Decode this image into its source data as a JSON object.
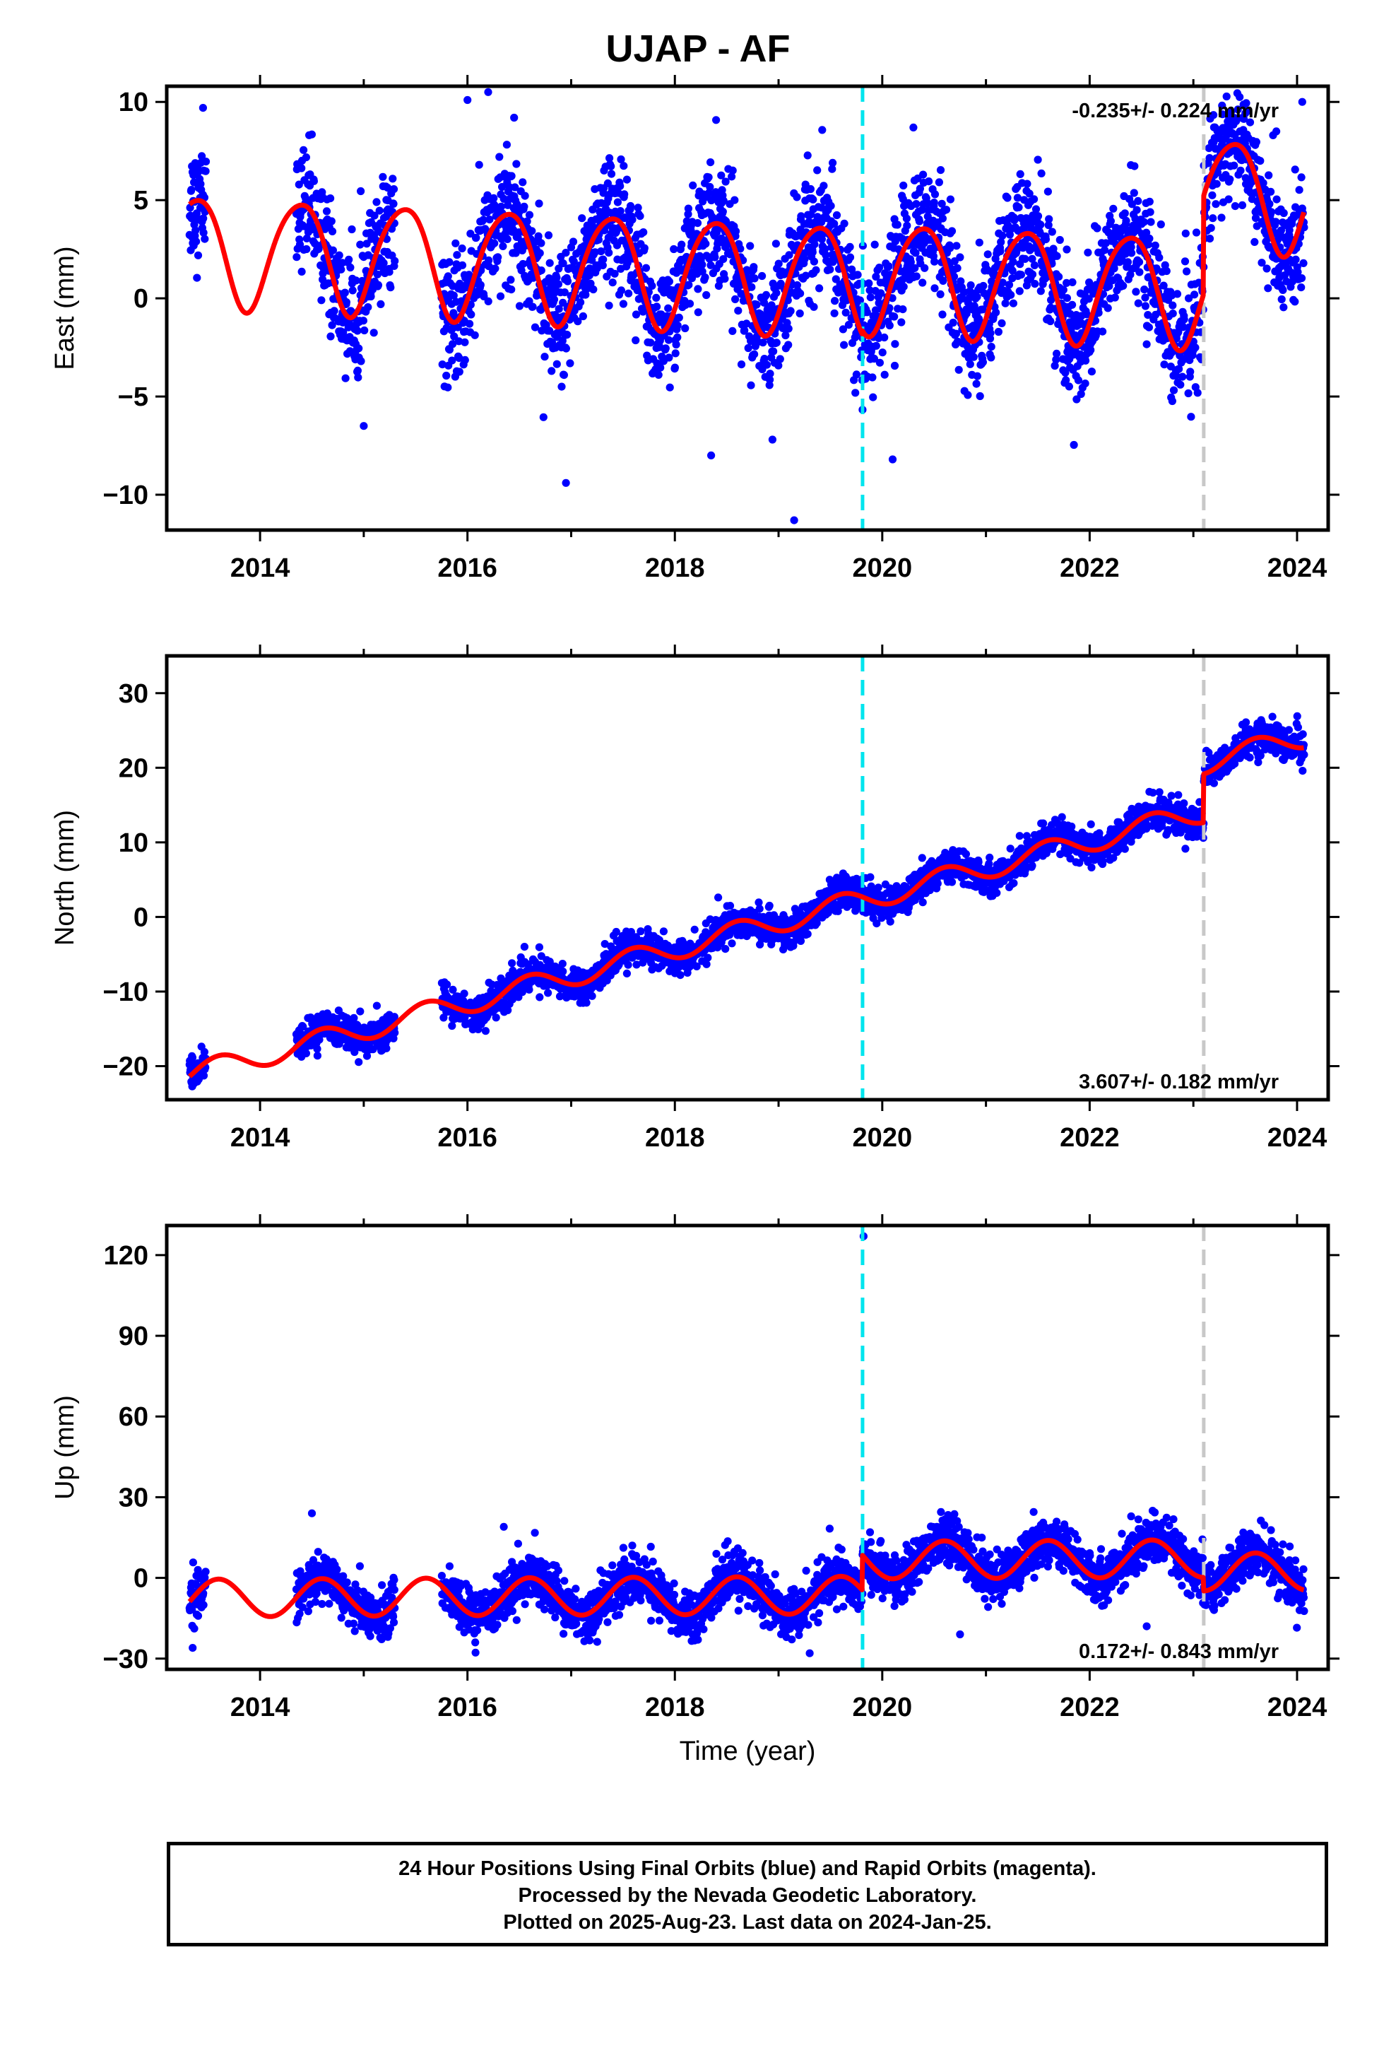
{
  "title": "UJAP - AF",
  "xlabel": "Time (year)",
  "footer": {
    "line1": "24 Hour Positions Using Final Orbits (blue) and Rapid Orbits (magenta).",
    "line2": "Processed by the Nevada Geodetic Laboratory.",
    "line3": "Plotted on 2025-Aug-23. Last data on 2024-Jan-25."
  },
  "colors": {
    "points": "#0000ff",
    "model": "#ff0000",
    "equipment_change": "#00e5ee",
    "earthquake": "#c8c8c8",
    "frame": "#000000"
  },
  "chart_data": [
    {
      "type": "scatter",
      "component": "East",
      "ylabel": "East (mm)",
      "rate_label": "-0.235+/- 0.224 mm/yr",
      "rate_label_position": "top-right",
      "xlim": [
        2013.1,
        2024.3
      ],
      "ylim": [
        -11.8,
        10.8
      ],
      "xticks": [
        2014,
        2016,
        2018,
        2020,
        2022,
        2024
      ],
      "yticks": [
        -10,
        -5,
        0,
        5,
        10
      ],
      "ytick_labels": [
        "−10",
        "−5",
        "0",
        "5",
        "10"
      ],
      "vlines": [
        {
          "x": 2019.81,
          "style": "dashed",
          "color_key": "equipment_change"
        },
        {
          "x": 2023.1,
          "style": "dashed",
          "color_key": "earthquake"
        }
      ],
      "model": {
        "intercept": 2.5,
        "rate": -0.235,
        "t0": 2013.35,
        "annual_amp": 2.8,
        "annual_peak": 0.38,
        "semiannual_amp": 0.35,
        "semiannual_peak": 0.1,
        "steps": [
          {
            "x": 2019.81,
            "size": 0.2
          },
          {
            "x": 2023.1,
            "size": 5.0
          }
        ]
      },
      "scatter_sigma": 1.5,
      "outliers": [
        {
          "x": 2016.0,
          "y": 10.1
        },
        {
          "x": 2016.2,
          "y": 10.5
        },
        {
          "x": 2016.45,
          "y": 9.2
        },
        {
          "x": 2013.45,
          "y": 9.7
        },
        {
          "x": 2016.95,
          "y": -9.4
        },
        {
          "x": 2019.15,
          "y": -11.3
        },
        {
          "x": 2018.35,
          "y": -8.0
        },
        {
          "x": 2015.0,
          "y": -6.5
        },
        {
          "x": 2020.1,
          "y": -8.2
        },
        {
          "x": 2024.05,
          "y": 10.0
        },
        {
          "x": 2023.8,
          "y": 8.5
        },
        {
          "x": 2020.3,
          "y": 8.7
        }
      ]
    },
    {
      "type": "scatter",
      "component": "North",
      "ylabel": "North (mm)",
      "rate_label": "3.607+/- 0.182 mm/yr",
      "rate_label_position": "bottom-right",
      "xlim": [
        2013.1,
        2024.3
      ],
      "ylim": [
        -24.5,
        35.0
      ],
      "xticks": [
        2014,
        2016,
        2018,
        2020,
        2022,
        2024
      ],
      "yticks": [
        -20,
        -10,
        0,
        10,
        20,
        30
      ],
      "ytick_labels": [
        "−20",
        "−10",
        "0",
        "10",
        "20",
        "30"
      ],
      "vlines": [
        {
          "x": 2019.81,
          "style": "dashed",
          "color_key": "equipment_change"
        },
        {
          "x": 2023.1,
          "style": "dashed",
          "color_key": "earthquake"
        }
      ],
      "model": {
        "intercept": -21.0,
        "rate": 3.607,
        "t0": 2013.35,
        "annual_amp": 1.5,
        "annual_peak": 0.6,
        "semiannual_amp": 0.0,
        "semiannual_peak": 0.0,
        "steps": [
          {
            "x": 2019.81,
            "size": 0.0
          },
          {
            "x": 2023.1,
            "size": 6.5
          }
        ]
      },
      "scatter_sigma": 1.1,
      "outliers": [
        {
          "x": 2019.8,
          "y": 5.0
        },
        {
          "x": 2016.55,
          "y": -4.0
        }
      ]
    },
    {
      "type": "scatter",
      "component": "Up",
      "ylabel": "Up (mm)",
      "rate_label": "0.172+/- 0.843 mm/yr",
      "rate_label_position": "bottom-right",
      "xlim": [
        2013.1,
        2024.3
      ],
      "ylim": [
        -34.0,
        131.0
      ],
      "xticks": [
        2014,
        2016,
        2018,
        2020,
        2022,
        2024
      ],
      "yticks": [
        -30,
        0,
        30,
        60,
        90,
        120
      ],
      "ytick_labels": [
        "−30",
        "0",
        "30",
        "60",
        "90",
        "120"
      ],
      "vlines": [
        {
          "x": 2019.81,
          "style": "dashed",
          "color_key": "equipment_change"
        },
        {
          "x": 2023.1,
          "style": "dashed",
          "color_key": "earthquake"
        }
      ],
      "model": {
        "intercept": -7.5,
        "rate": 0.172,
        "t0": 2013.35,
        "annual_amp": 7.0,
        "annual_peak": 0.6,
        "semiannual_amp": 0.0,
        "semiannual_peak": 0.0,
        "steps": [
          {
            "x": 2019.81,
            "size": 13.0
          },
          {
            "x": 2023.1,
            "size": -5.0
          }
        ]
      },
      "scatter_sigma": 4.5,
      "outliers": [
        {
          "x": 2019.82,
          "y": 127.0
        },
        {
          "x": 2014.5,
          "y": 24.0
        },
        {
          "x": 2016.35,
          "y": 19.0
        },
        {
          "x": 2013.35,
          "y": -26.0
        },
        {
          "x": 2019.3,
          "y": -28.0
        },
        {
          "x": 2020.75,
          "y": -21.0
        },
        {
          "x": 2022.55,
          "y": -18.0
        }
      ]
    }
  ],
  "data_segments": [
    [
      2013.32,
      2013.48
    ],
    [
      2014.35,
      2015.3
    ],
    [
      2015.75,
      2019.81
    ],
    [
      2019.81,
      2024.07
    ]
  ]
}
